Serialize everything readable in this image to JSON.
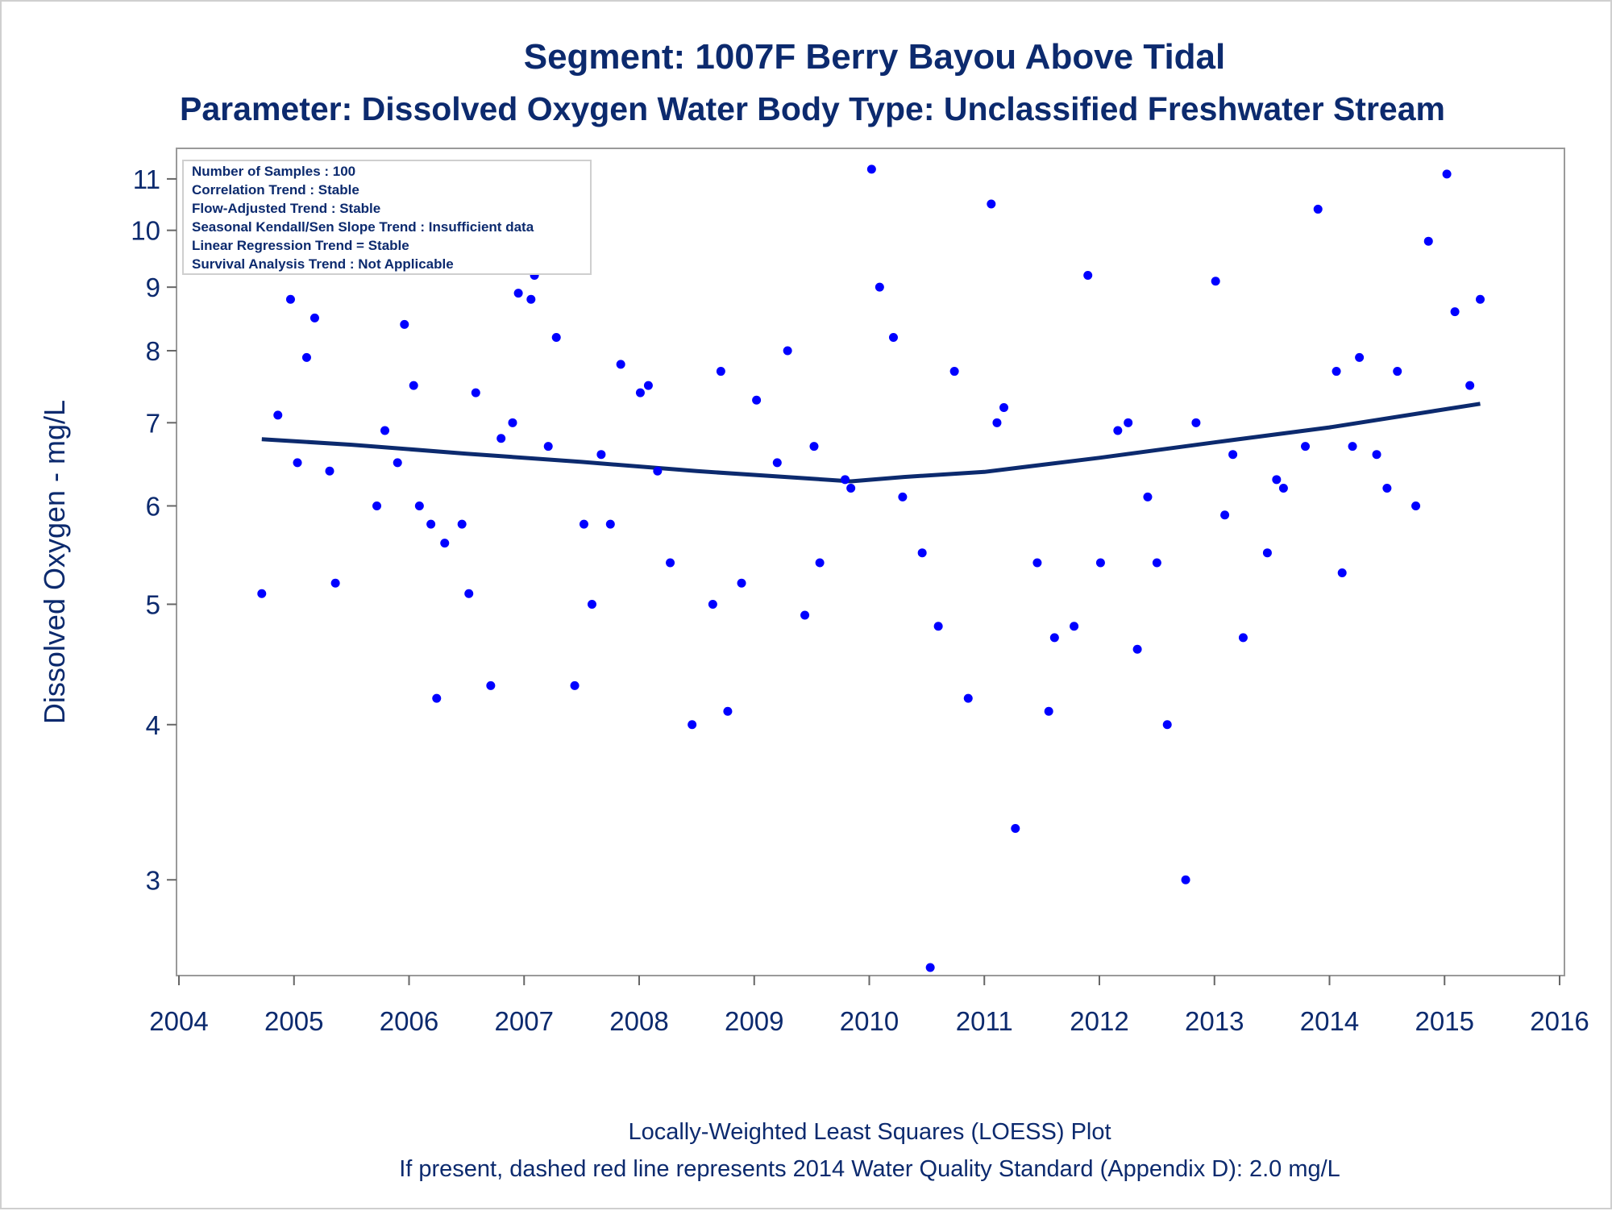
{
  "chart_data": {
    "type": "scatter",
    "title": "Segment: 1007F  Berry Bayou Above Tidal",
    "subtitle": "Parameter: Dissolved Oxygen   Water Body Type: Unclassified Freshwater Stream",
    "ylabel": "Dissolved Oxygen - mg/L",
    "xlabel": "",
    "footnotes": [
      "Locally-Weighted Least Squares (LOESS) Plot",
      "If present, dashed red line represents 2014 Water Quality Standard (Appendix D): 2.0 mg/L"
    ],
    "stats_box": [
      "Number of Samples : 100",
      "Correlation Trend : Stable",
      "Flow-Adjusted Trend : Stable",
      "Seasonal Kendall/Sen Slope Trend : Insufficient data",
      "Linear Regression Trend = Stable",
      "Survival Analysis Trend : Not Applicable"
    ],
    "legend_placement": "top-left",
    "grid": false,
    "y_scale": "log",
    "xlim": [
      2004,
      2016
    ],
    "ylim": [
      2.55,
      11.4
    ],
    "x_ticks": [
      2004,
      2005,
      2006,
      2007,
      2008,
      2009,
      2010,
      2011,
      2012,
      2013,
      2014,
      2015,
      2016
    ],
    "y_ticks": [
      3,
      4,
      5,
      6,
      7,
      8,
      9,
      10,
      11
    ],
    "colors": {
      "points": "#0000ff",
      "loess": "#0c2a6e",
      "text": "#0c2a6e",
      "frame": "#9a9a9a"
    },
    "series": [
      {
        "type": "scatter",
        "points": [
          [
            2004.72,
            5.1
          ],
          [
            2004.86,
            7.1
          ],
          [
            2004.97,
            8.8
          ],
          [
            2005.03,
            6.5
          ],
          [
            2005.11,
            7.9
          ],
          [
            2005.18,
            8.5
          ],
          [
            2005.31,
            6.4
          ],
          [
            2005.36,
            5.2
          ],
          [
            2005.72,
            6.0
          ],
          [
            2005.79,
            6.9
          ],
          [
            2005.9,
            6.5
          ],
          [
            2005.96,
            8.4
          ],
          [
            2006.04,
            7.5
          ],
          [
            2006.09,
            6.0
          ],
          [
            2006.19,
            5.8
          ],
          [
            2006.24,
            4.2
          ],
          [
            2006.31,
            5.6
          ],
          [
            2006.46,
            5.8
          ],
          [
            2006.52,
            5.1
          ],
          [
            2006.58,
            7.4
          ],
          [
            2006.71,
            4.3
          ],
          [
            2006.8,
            6.8
          ],
          [
            2006.9,
            7.0
          ],
          [
            2006.95,
            8.9
          ],
          [
            2007.06,
            8.8
          ],
          [
            2007.09,
            9.2
          ],
          [
            2007.21,
            6.7
          ],
          [
            2007.28,
            8.2
          ],
          [
            2007.44,
            4.3
          ],
          [
            2007.52,
            5.8
          ],
          [
            2007.59,
            5.0
          ],
          [
            2007.67,
            6.6
          ],
          [
            2007.75,
            5.8
          ],
          [
            2007.84,
            7.8
          ],
          [
            2008.01,
            7.4
          ],
          [
            2008.08,
            7.5
          ],
          [
            2008.16,
            6.4
          ],
          [
            2008.27,
            5.4
          ],
          [
            2008.46,
            4.0
          ],
          [
            2008.64,
            5.0
          ],
          [
            2008.71,
            7.7
          ],
          [
            2008.77,
            4.1
          ],
          [
            2008.89,
            5.2
          ],
          [
            2009.02,
            7.3
          ],
          [
            2009.2,
            6.5
          ],
          [
            2009.29,
            8.0
          ],
          [
            2009.44,
            4.9
          ],
          [
            2009.52,
            6.7
          ],
          [
            2009.57,
            5.4
          ],
          [
            2009.79,
            6.3
          ],
          [
            2009.84,
            6.2
          ],
          [
            2010.02,
            11.2
          ],
          [
            2010.09,
            9.0
          ],
          [
            2010.21,
            8.2
          ],
          [
            2010.29,
            6.1
          ],
          [
            2010.46,
            5.5
          ],
          [
            2010.53,
            2.55
          ],
          [
            2010.6,
            4.8
          ],
          [
            2010.74,
            7.7
          ],
          [
            2010.86,
            4.2
          ],
          [
            2011.06,
            10.5
          ],
          [
            2011.11,
            7.0
          ],
          [
            2011.17,
            7.2
          ],
          [
            2011.27,
            3.3
          ],
          [
            2011.46,
            5.4
          ],
          [
            2011.56,
            4.1
          ],
          [
            2011.61,
            4.7
          ],
          [
            2011.78,
            4.8
          ],
          [
            2011.9,
            9.2
          ],
          [
            2012.01,
            5.4
          ],
          [
            2012.16,
            6.9
          ],
          [
            2012.25,
            7.0
          ],
          [
            2012.33,
            4.6
          ],
          [
            2012.42,
            6.1
          ],
          [
            2012.5,
            5.4
          ],
          [
            2012.59,
            4.0
          ],
          [
            2012.75,
            3.0
          ],
          [
            2012.84,
            7.0
          ],
          [
            2013.01,
            9.1
          ],
          [
            2013.09,
            5.9
          ],
          [
            2013.16,
            6.6
          ],
          [
            2013.25,
            4.7
          ],
          [
            2013.46,
            5.5
          ],
          [
            2013.54,
            6.3
          ],
          [
            2013.6,
            6.2
          ],
          [
            2013.79,
            6.7
          ],
          [
            2013.9,
            10.4
          ],
          [
            2014.06,
            7.7
          ],
          [
            2014.11,
            5.3
          ],
          [
            2014.2,
            6.7
          ],
          [
            2014.26,
            7.9
          ],
          [
            2014.41,
            6.6
          ],
          [
            2014.5,
            6.2
          ],
          [
            2014.59,
            7.7
          ],
          [
            2014.75,
            6.0
          ],
          [
            2014.86,
            9.8
          ],
          [
            2015.02,
            11.1
          ],
          [
            2015.09,
            8.6
          ],
          [
            2015.22,
            7.5
          ],
          [
            2015.31,
            8.8
          ]
        ]
      },
      {
        "type": "line",
        "points": [
          [
            2004.72,
            6.79
          ],
          [
            2005.5,
            6.72
          ],
          [
            2006.5,
            6.61
          ],
          [
            2007.5,
            6.51
          ],
          [
            2008.5,
            6.4
          ],
          [
            2009.84,
            6.28
          ],
          [
            2010.3,
            6.33
          ],
          [
            2011.0,
            6.39
          ],
          [
            2012.0,
            6.56
          ],
          [
            2013.0,
            6.75
          ],
          [
            2014.0,
            6.94
          ],
          [
            2015.31,
            7.25
          ]
        ]
      }
    ]
  }
}
